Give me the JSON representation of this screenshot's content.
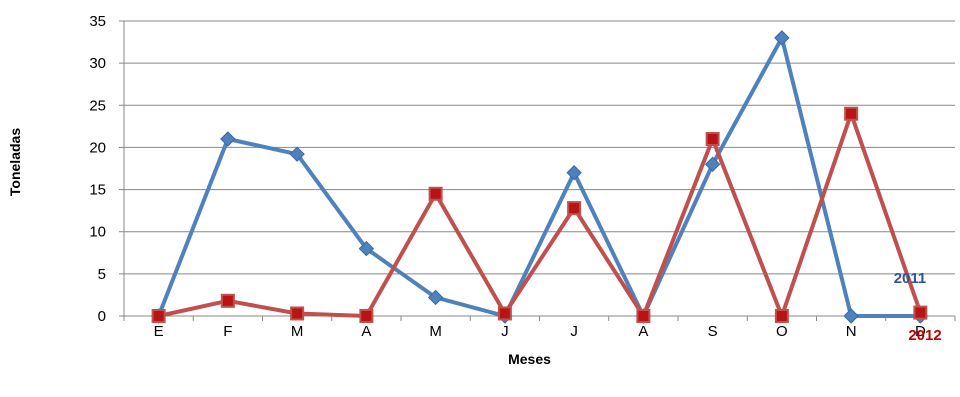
{
  "chart_data": {
    "type": "line",
    "categories": [
      "E",
      "F",
      "M",
      "A",
      "M",
      "J",
      "J",
      "A",
      "S",
      "O",
      "N",
      "D"
    ],
    "series": [
      {
        "name": "2011",
        "color": "#4f81bd",
        "marker": "diamond",
        "values": [
          0,
          21,
          19.2,
          8,
          2.2,
          0,
          17,
          0,
          18,
          33,
          0,
          0
        ]
      },
      {
        "name": "2012",
        "color": "#c0504d",
        "marker": "square",
        "values": [
          0,
          1.8,
          0.3,
          0,
          14.5,
          0.3,
          12.8,
          0,
          21,
          0,
          24,
          0.4
        ]
      }
    ],
    "xlabel": "Meses",
    "ylabel": "Toneladas",
    "ylim": [
      0,
      35
    ],
    "yticks": [
      0,
      5,
      10,
      15,
      20,
      25,
      30,
      35
    ],
    "grid": true,
    "series_label_colors": {
      "2011": "#2f5496",
      "2012": "#c00000"
    }
  }
}
